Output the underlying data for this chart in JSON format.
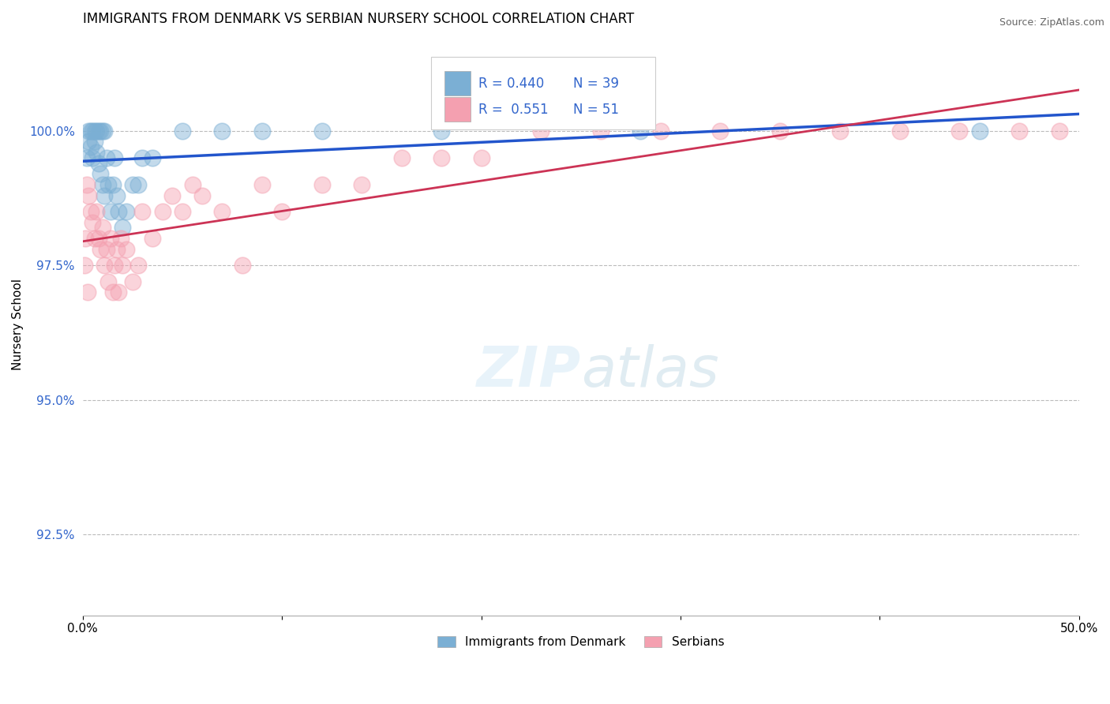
{
  "title": "IMMIGRANTS FROM DENMARK VS SERBIAN NURSERY SCHOOL CORRELATION CHART",
  "source": "Source: ZipAtlas.com",
  "ylabel": "Nursery School",
  "xlim": [
    0.0,
    50.0
  ],
  "ylim": [
    91.0,
    101.8
  ],
  "yticks": [
    92.5,
    95.0,
    97.5,
    100.0
  ],
  "ytick_labels": [
    "92.5%",
    "95.0%",
    "97.5%",
    "100.0%"
  ],
  "xticks": [
    0.0,
    10.0,
    20.0,
    30.0,
    40.0,
    50.0
  ],
  "xtick_labels": [
    "0.0%",
    "",
    "",
    "",
    "",
    "50.0%"
  ],
  "denmark_R": 0.44,
  "denmark_N": 39,
  "serbian_R": 0.551,
  "serbian_N": 51,
  "denmark_color": "#7bafd4",
  "serbian_color": "#f4a0b0",
  "denmark_line_color": "#2255cc",
  "serbian_line_color": "#cc3355",
  "legend_label_denmark": "Immigrants from Denmark",
  "legend_label_serbian": "Serbians",
  "denmark_x": [
    0.2,
    0.3,
    0.3,
    0.4,
    0.4,
    0.5,
    0.5,
    0.6,
    0.6,
    0.7,
    0.7,
    0.8,
    0.8,
    0.9,
    0.9,
    1.0,
    1.0,
    1.1,
    1.1,
    1.2,
    1.3,
    1.4,
    1.5,
    1.6,
    1.7,
    1.8,
    2.0,
    2.2,
    2.5,
    2.8,
    3.0,
    3.5,
    5.0,
    7.0,
    9.0,
    12.0,
    18.0,
    28.0,
    45.0
  ],
  "denmark_y": [
    99.5,
    100.0,
    99.8,
    100.0,
    99.7,
    100.0,
    99.5,
    100.0,
    99.8,
    100.0,
    99.6,
    100.0,
    99.4,
    100.0,
    99.2,
    100.0,
    99.0,
    100.0,
    98.8,
    99.5,
    99.0,
    98.5,
    99.0,
    99.5,
    98.8,
    98.5,
    98.2,
    98.5,
    99.0,
    99.0,
    99.5,
    99.5,
    100.0,
    100.0,
    100.0,
    100.0,
    100.0,
    100.0,
    100.0
  ],
  "serbian_x": [
    0.2,
    0.3,
    0.4,
    0.5,
    0.6,
    0.7,
    0.8,
    0.9,
    1.0,
    1.1,
    1.2,
    1.3,
    1.4,
    1.5,
    1.6,
    1.7,
    1.8,
    1.9,
    2.0,
    2.2,
    2.5,
    2.8,
    3.0,
    3.5,
    4.0,
    4.5,
    5.0,
    5.5,
    6.0,
    7.0,
    8.0,
    9.0,
    10.0,
    12.0,
    14.0,
    16.0,
    18.0,
    20.0,
    23.0,
    26.0,
    29.0,
    32.0,
    35.0,
    38.0,
    41.0,
    44.0,
    47.0,
    49.0,
    0.15,
    0.1,
    0.25
  ],
  "serbian_y": [
    99.0,
    98.8,
    98.5,
    98.3,
    98.0,
    98.5,
    98.0,
    97.8,
    98.2,
    97.5,
    97.8,
    97.2,
    98.0,
    97.0,
    97.5,
    97.8,
    97.0,
    98.0,
    97.5,
    97.8,
    97.2,
    97.5,
    98.5,
    98.0,
    98.5,
    98.8,
    98.5,
    99.0,
    98.8,
    98.5,
    97.5,
    99.0,
    98.5,
    99.0,
    99.0,
    99.5,
    99.5,
    99.5,
    100.0,
    100.0,
    100.0,
    100.0,
    100.0,
    100.0,
    100.0,
    100.0,
    100.0,
    100.0,
    98.0,
    97.5,
    97.0
  ]
}
